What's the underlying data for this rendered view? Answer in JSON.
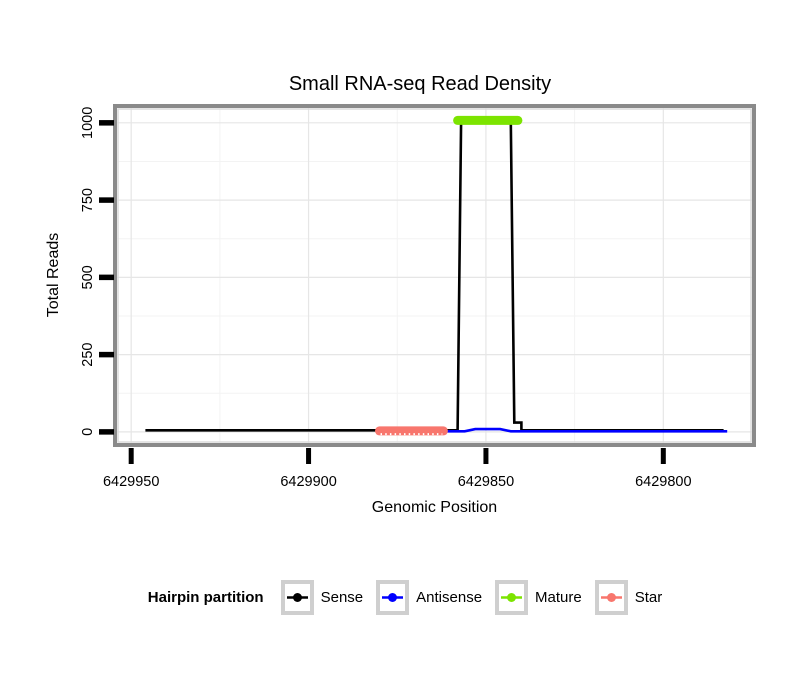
{
  "chart_data": {
    "type": "line",
    "title": "Small RNA-seq Read Density",
    "xlabel": "Genomic Position",
    "ylabel": "Total Reads",
    "x_axis_reversed": true,
    "xlim": [
      6429954,
      6429775
    ],
    "ylim": [
      -36,
      1048
    ],
    "x_ticks": [
      6429950,
      6429900,
      6429850,
      6429800
    ],
    "x_minor_gridlines": [
      6429925,
      6429875,
      6429825
    ],
    "y_ticks": [
      0,
      250,
      500,
      750,
      1000
    ],
    "y_minor_gridlines": [
      125,
      375,
      625,
      875
    ],
    "legend_title": "Hairpin partition",
    "series": [
      {
        "name": "Sense",
        "color": "#000000",
        "width": 2.6,
        "points": [
          [
            6429946,
            5
          ],
          [
            6429858,
            5
          ],
          [
            6429857,
            1005
          ],
          [
            6429843,
            1005
          ],
          [
            6429842,
            30
          ],
          [
            6429840,
            30
          ],
          [
            6429840,
            5
          ],
          [
            6429783,
            5
          ]
        ]
      },
      {
        "name": "Antisense",
        "color": "#0000FF",
        "width": 2.6,
        "points": [
          [
            6429861,
            2
          ],
          [
            6429856,
            2
          ],
          [
            6429853,
            9
          ],
          [
            6429846,
            9
          ],
          [
            6429843,
            2
          ],
          [
            6429782,
            2
          ]
        ]
      },
      {
        "name": "Mature",
        "color": "#7CE400",
        "width": 9,
        "linecap": "round",
        "points": [
          [
            6429858,
            1008
          ],
          [
            6429841,
            1008
          ]
        ]
      },
      {
        "name": "Star",
        "color": "#F8766D",
        "width": 9,
        "linecap": "round",
        "dotted_white_edge": true,
        "points": [
          [
            6429880,
            3
          ],
          [
            6429862,
            3
          ]
        ]
      }
    ],
    "layout": {
      "panel_border_color": "#8A8A8A",
      "panel_inner_edge_color": "#DCDCDC",
      "grid_major_color": "#E6E6E6",
      "grid_minor_color": "#F3F3F3",
      "tick_color": "#000000",
      "legend_key_border_color": "#CFCFCF",
      "grid": "on",
      "legend_position": "bottom"
    }
  }
}
